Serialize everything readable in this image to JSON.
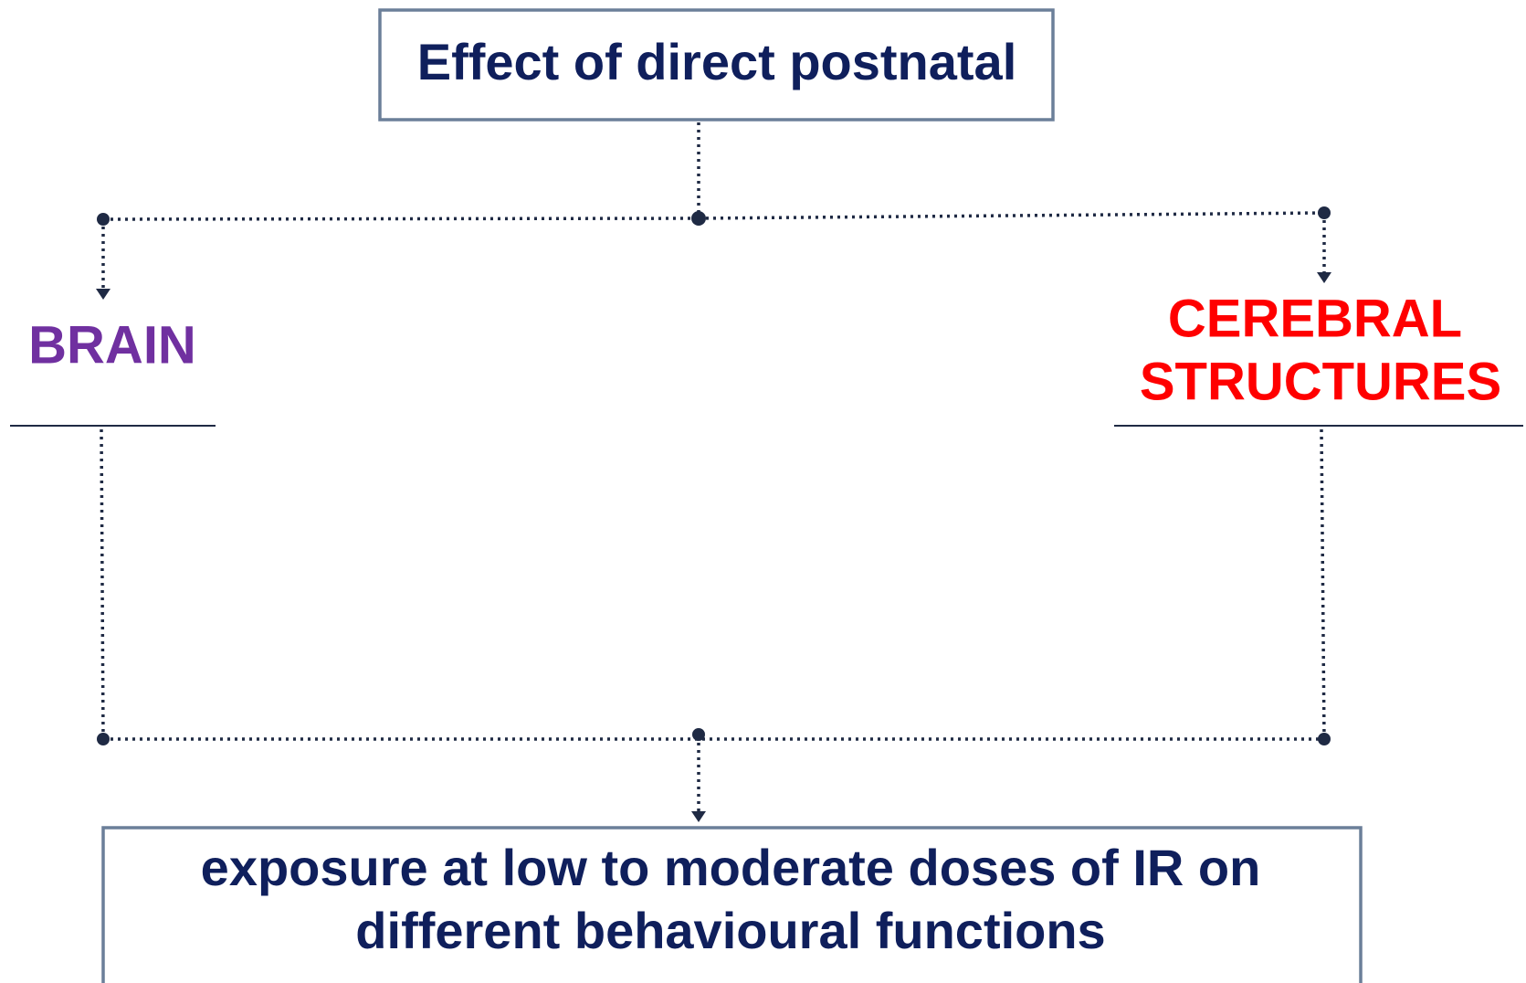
{
  "top_box": {
    "text": "Effect of direct postnatal"
  },
  "left_label": {
    "text": "BRAIN"
  },
  "right_label": {
    "lines": [
      "CEREBRAL",
      "STRUCTURES"
    ]
  },
  "bottom_box": {
    "lines": [
      "exposure at low to moderate doses of IR on",
      "different behavioural functions"
    ]
  }
}
